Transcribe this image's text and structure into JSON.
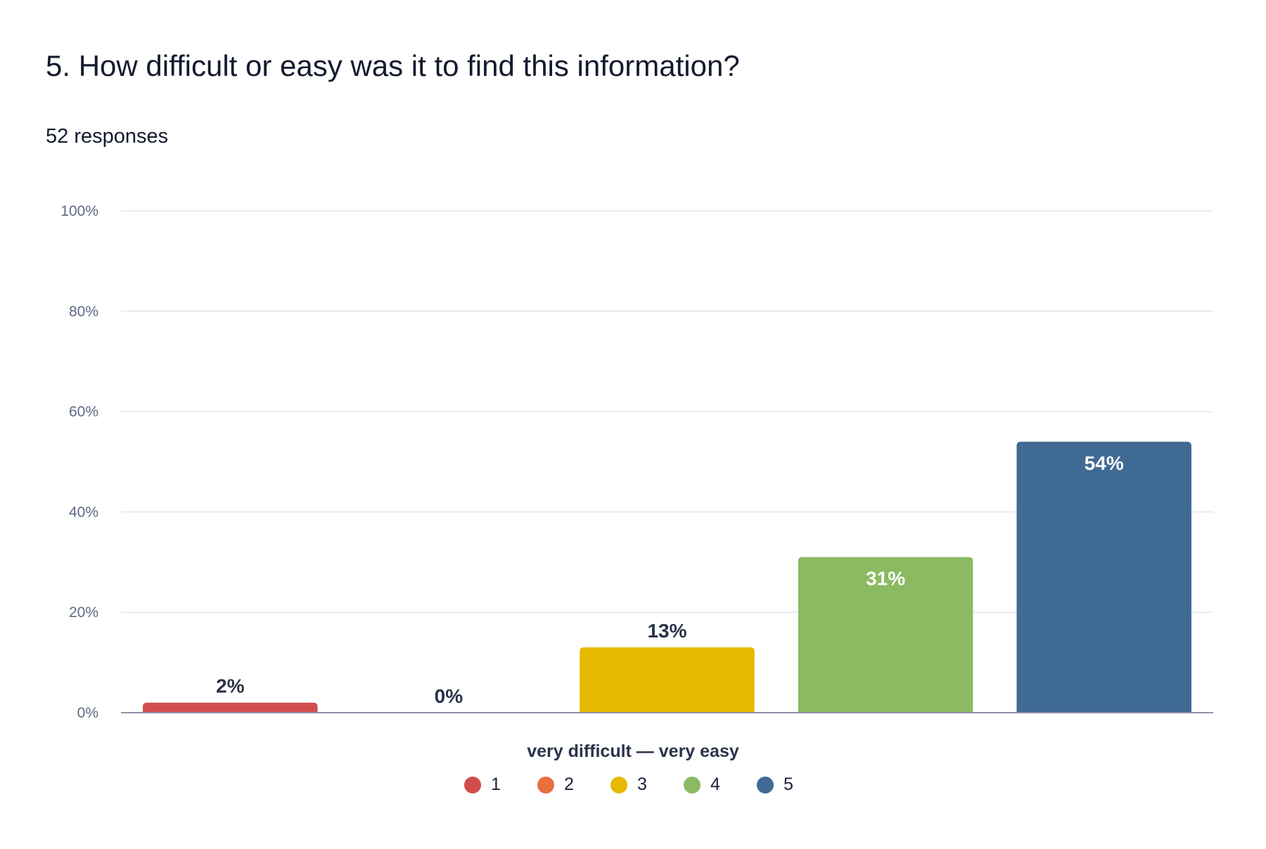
{
  "header": {
    "title": "5. How difficult or easy was it to find this information?",
    "responses": "52 responses"
  },
  "chart_data": {
    "type": "bar",
    "categories": [
      "1",
      "2",
      "3",
      "4",
      "5"
    ],
    "values": [
      2,
      0,
      13,
      31,
      54
    ],
    "value_labels": [
      "2%",
      "0%",
      "13%",
      "31%",
      "54%"
    ],
    "colors": [
      "#d14d4d",
      "#e8703a",
      "#e6b800",
      "#8bba62",
      "#3f6a94"
    ],
    "xlabel": "very difficult — very easy",
    "ylabel": "",
    "ylim": [
      0,
      100
    ],
    "yticks": [
      0,
      20,
      40,
      60,
      80,
      100
    ],
    "ytick_labels": [
      "0%",
      "20%",
      "40%",
      "60%",
      "80%",
      "100%"
    ],
    "grid": true,
    "legend": {
      "placement": "bottom",
      "entries": [
        "1",
        "2",
        "3",
        "4",
        "5"
      ]
    },
    "label_colors": {
      "outside": "#2a3349",
      "inside": "#ffffff"
    }
  }
}
